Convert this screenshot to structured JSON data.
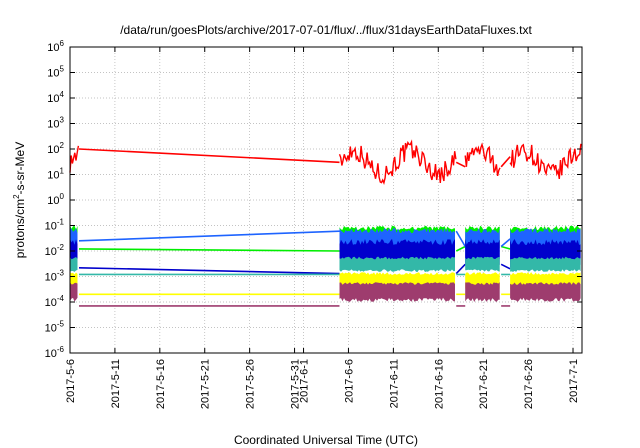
{
  "chart_data": {
    "type": "line",
    "title": "/data/run/goesPlots/archive/2017-07-01/flux/../flux/31daysEarthDataFluxes.txt",
    "xlabel": "Coordinated Universal Time (UTC)",
    "ylabel": {
      "prefix": "protons/cm",
      "sup": "2",
      "suffix": "-s-sr-MeV"
    },
    "yscale": "log",
    "ylim": [
      1e-06,
      1000000.0
    ],
    "y_ticks": [
      {
        "base": "10",
        "exp": "-6"
      },
      {
        "base": "10",
        "exp": "-5"
      },
      {
        "base": "10",
        "exp": "-4"
      },
      {
        "base": "10",
        "exp": "-3"
      },
      {
        "base": "10",
        "exp": "-2"
      },
      {
        "base": "10",
        "exp": "-1"
      },
      {
        "base": "10",
        "exp": "0"
      },
      {
        "base": "10",
        "exp": "1"
      },
      {
        "base": "10",
        "exp": "2"
      },
      {
        "base": "10",
        "exp": "3"
      },
      {
        "base": "10",
        "exp": "4"
      },
      {
        "base": "10",
        "exp": "5"
      },
      {
        "base": "10",
        "exp": "6"
      }
    ],
    "xlim": [
      "2017-05-06",
      "2017-07-02"
    ],
    "x_ticks": [
      "2017-5-6",
      "2017-5-11",
      "2017-5-16",
      "2017-5-21",
      "2017-5-26",
      "2017-5-31",
      "2017-6-1",
      "2017-6-6",
      "2017-6-11",
      "2017-6-16",
      "2017-6-21",
      "2017-6-26",
      "2017-7-1"
    ],
    "x_tick_dates": [
      "2017-05-06",
      "2017-05-11",
      "2017-05-16",
      "2017-05-21",
      "2017-05-26",
      "2017-05-31",
      "2017-06-01",
      "2017-06-06",
      "2017-06-11",
      "2017-06-16",
      "2017-06-21",
      "2017-06-26",
      "2017-07-01"
    ],
    "grid": true,
    "legend": "none",
    "data_segments": [
      {
        "start": "2017-05-06",
        "end": "2017-05-07"
      },
      {
        "start": "2017-06-05",
        "end": "2017-06-18"
      },
      {
        "start": "2017-06-19",
        "end": "2017-06-23"
      },
      {
        "start": "2017-06-24",
        "end": "2017-07-02"
      }
    ],
    "series": [
      {
        "color": "#ff0000",
        "gap_values": [
          100,
          30,
          20,
          50
        ],
        "low": 1,
        "high": 200,
        "typical": 30,
        "draw": "line"
      },
      {
        "color": "#00ee00",
        "gap_values": [
          0.012,
          0.01,
          0.015,
          0.012
        ],
        "low": 0.01,
        "high": 0.1,
        "typical": 0.03,
        "draw": "band"
      },
      {
        "color": "#1e64ff",
        "gap_values": [
          0.025,
          0.06,
          0.015,
          0.03
        ],
        "low": 0.003,
        "high": 0.08,
        "typical": 0.02,
        "draw": "band"
      },
      {
        "color": "#0000cc",
        "gap_values": [
          0.0022,
          0.0013,
          0.003,
          0.002
        ],
        "low": 0.002,
        "high": 0.03,
        "typical": 0.006,
        "draw": "band"
      },
      {
        "color": "#33b8a8",
        "gap_values": [
          0.0012,
          0.0012,
          0.0012,
          0.0012
        ],
        "low": 0.0015,
        "high": 0.006,
        "typical": 0.003,
        "draw": "band"
      },
      {
        "color": "#ffff00",
        "gap_values": [
          0.0002,
          0.0002,
          0.0002,
          0.0002
        ],
        "low": 0.0003,
        "high": 0.0015,
        "typical": 0.0007,
        "draw": "band"
      },
      {
        "color": "#9e3c6e",
        "gap_values": [
          7e-05,
          7e-05,
          7e-05,
          7e-05
        ],
        "low": 0.0001,
        "high": 0.0006,
        "typical": 0.0003,
        "draw": "band"
      }
    ]
  }
}
